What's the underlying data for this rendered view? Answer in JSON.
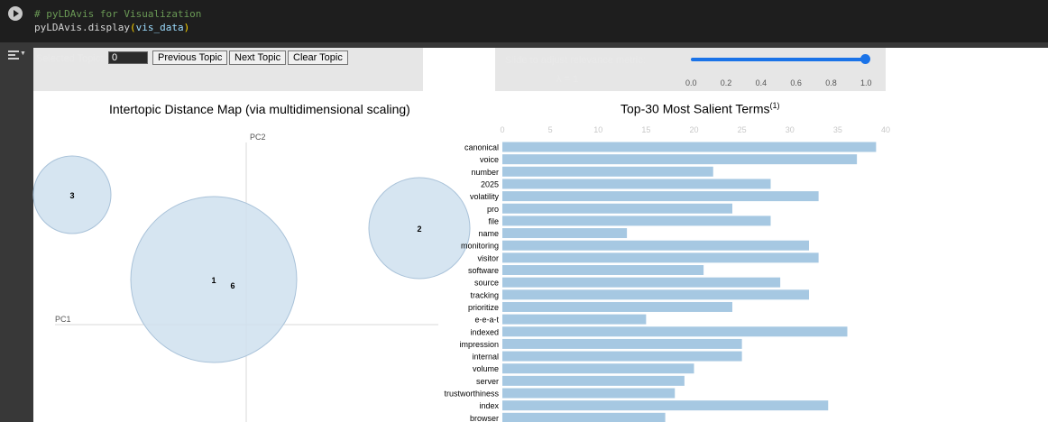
{
  "code": {
    "comment": "# pyLDAvis for Visualization",
    "line2_fn": "pyLDAvis.display",
    "line2_open": "(",
    "line2_arg": "vis_data",
    "line2_close": ")"
  },
  "controls": {
    "selected_topic_label": "Selected Topic:",
    "selected_topic_value": "0",
    "previous_label": "Previous Topic",
    "next_label": "Next Topic",
    "clear_label": "Clear Topic",
    "slider_label": "Slide to adjust relevance metric:",
    "lambda_label": "λ = 1",
    "slider_value": 1.0,
    "slider_ticks": [
      "0.0",
      "0.2",
      "0.4",
      "0.6",
      "0.8",
      "1.0"
    ]
  },
  "topic_map": {
    "title": "Intertopic Distance Map (via multidimensional scaling)",
    "pc1_label": "PC1",
    "pc2_label": "PC2",
    "topics": [
      {
        "label": "1"
      },
      {
        "label": "2"
      },
      {
        "label": "3"
      },
      {
        "label": "6"
      }
    ]
  },
  "bar_chart": {
    "title": "Top-30 Most Salient Terms",
    "title_sup": "(1)"
  },
  "colors": {
    "bar": "#a6c8e2",
    "bubble_fill": "#cfe0ee",
    "bubble_stroke": "#a9c2d9",
    "accent": "#1a73e8"
  },
  "chart_data": {
    "type": "bar",
    "orientation": "horizontal",
    "title": "Top-30 Most Salient Terms",
    "xlim": [
      0,
      40
    ],
    "x_ticks": [
      0,
      5,
      10,
      15,
      20,
      25,
      30,
      35,
      40
    ],
    "categories": [
      "canonical",
      "voice",
      "number",
      "2025",
      "volatility",
      "pro",
      "file",
      "name",
      "monitoring",
      "visitor",
      "software",
      "source",
      "tracking",
      "prioritize",
      "e-e-a-t",
      "indexed",
      "impression",
      "internal",
      "volume",
      "server",
      "trustworthiness",
      "index",
      "browser"
    ],
    "values": [
      39,
      37,
      22,
      28,
      33,
      24,
      28,
      13,
      32,
      33,
      21,
      29,
      32,
      24,
      15,
      36,
      25,
      25,
      20,
      19,
      18,
      34,
      17
    ]
  }
}
